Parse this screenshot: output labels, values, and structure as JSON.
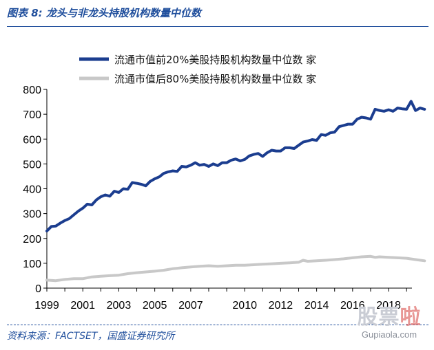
{
  "figure": {
    "title": "图表 8:  龙头与非龙头持股机构数量中位数",
    "source": "资料来源：FACTSET，国盛证券研究所",
    "watermark": {
      "text_a": "股票",
      "text_b": "啦",
      "url": "Gupiaola.com"
    }
  },
  "colors": {
    "series1": "#1b3d8f",
    "series2": "#c8c8c8",
    "brand": "#1f4e9c"
  },
  "chart_data": {
    "type": "line",
    "title": "",
    "xlabel": "",
    "ylabel": "",
    "ylim": [
      0,
      800
    ],
    "yticks": [
      0,
      100,
      200,
      300,
      400,
      500,
      600,
      700,
      800
    ],
    "xlim": [
      1999,
      2019.3
    ],
    "xticks": [
      1999,
      2001,
      2003,
      2005,
      2007,
      2010,
      2012,
      2014,
      2016,
      2018
    ],
    "grid": false,
    "legend_position": "top",
    "series": [
      {
        "name": "流通市值前20%美股持股机构数量中位数 家",
        "points": [
          [
            1999.0,
            230
          ],
          [
            1999.25,
            248
          ],
          [
            1999.5,
            250
          ],
          [
            1999.75,
            262
          ],
          [
            2000.0,
            272
          ],
          [
            2000.25,
            280
          ],
          [
            2000.5,
            295
          ],
          [
            2000.75,
            310
          ],
          [
            2001.0,
            322
          ],
          [
            2001.25,
            338
          ],
          [
            2001.5,
            335
          ],
          [
            2001.75,
            355
          ],
          [
            2002.0,
            368
          ],
          [
            2002.25,
            375
          ],
          [
            2002.5,
            370
          ],
          [
            2002.75,
            390
          ],
          [
            2003.0,
            385
          ],
          [
            2003.25,
            400
          ],
          [
            2003.5,
            398
          ],
          [
            2003.75,
            425
          ],
          [
            2004.0,
            422
          ],
          [
            2004.25,
            418
          ],
          [
            2004.5,
            412
          ],
          [
            2004.75,
            430
          ],
          [
            2005.0,
            440
          ],
          [
            2005.25,
            448
          ],
          [
            2005.5,
            462
          ],
          [
            2005.75,
            468
          ],
          [
            2006.0,
            472
          ],
          [
            2006.25,
            470
          ],
          [
            2006.5,
            490
          ],
          [
            2006.75,
            488
          ],
          [
            2007.0,
            495
          ],
          [
            2007.25,
            505
          ],
          [
            2007.5,
            495
          ],
          [
            2007.75,
            498
          ],
          [
            2008.0,
            490
          ],
          [
            2008.25,
            500
          ],
          [
            2008.5,
            493
          ],
          [
            2008.75,
            505
          ],
          [
            2009.0,
            505
          ],
          [
            2009.25,
            515
          ],
          [
            2009.5,
            520
          ],
          [
            2009.75,
            512
          ],
          [
            2010.0,
            518
          ],
          [
            2010.25,
            532
          ],
          [
            2010.5,
            538
          ],
          [
            2010.75,
            542
          ],
          [
            2011.0,
            530
          ],
          [
            2011.25,
            545
          ],
          [
            2011.5,
            555
          ],
          [
            2011.75,
            552
          ],
          [
            2012.0,
            552
          ],
          [
            2012.25,
            565
          ],
          [
            2012.5,
            565
          ],
          [
            2012.75,
            562
          ],
          [
            2013.0,
            575
          ],
          [
            2013.25,
            588
          ],
          [
            2013.5,
            592
          ],
          [
            2013.75,
            598
          ],
          [
            2014.0,
            595
          ],
          [
            2014.25,
            618
          ],
          [
            2014.5,
            615
          ],
          [
            2014.75,
            625
          ],
          [
            2015.0,
            628
          ],
          [
            2015.25,
            650
          ],
          [
            2015.5,
            655
          ],
          [
            2015.75,
            660
          ],
          [
            2016.0,
            660
          ],
          [
            2016.25,
            680
          ],
          [
            2016.5,
            688
          ],
          [
            2016.75,
            685
          ],
          [
            2017.0,
            680
          ],
          [
            2017.25,
            720
          ],
          [
            2017.5,
            715
          ],
          [
            2017.75,
            712
          ],
          [
            2018.0,
            718
          ],
          [
            2018.25,
            712
          ],
          [
            2018.5,
            725
          ],
          [
            2018.75,
            722
          ],
          [
            2019.0,
            720
          ],
          [
            2019.25,
            752
          ],
          [
            2019.5,
            715
          ],
          [
            2019.75,
            725
          ],
          [
            2020.0,
            720
          ]
        ]
      },
      {
        "name": "流通市值后80%美股持股机构数量中位数 家",
        "points": [
          [
            1999.0,
            32
          ],
          [
            1999.5,
            30
          ],
          [
            2000.0,
            35
          ],
          [
            2000.5,
            38
          ],
          [
            2001.0,
            38
          ],
          [
            2001.5,
            45
          ],
          [
            2002.0,
            48
          ],
          [
            2002.5,
            50
          ],
          [
            2003.0,
            52
          ],
          [
            2003.5,
            58
          ],
          [
            2004.0,
            62
          ],
          [
            2004.5,
            65
          ],
          [
            2005.0,
            68
          ],
          [
            2005.5,
            72
          ],
          [
            2006.0,
            78
          ],
          [
            2006.5,
            82
          ],
          [
            2007.0,
            85
          ],
          [
            2007.5,
            88
          ],
          [
            2008.0,
            90
          ],
          [
            2008.5,
            88
          ],
          [
            2009.0,
            90
          ],
          [
            2009.5,
            92
          ],
          [
            2010.0,
            92
          ],
          [
            2010.5,
            94
          ],
          [
            2011.0,
            96
          ],
          [
            2011.5,
            98
          ],
          [
            2012.0,
            100
          ],
          [
            2012.5,
            102
          ],
          [
            2013.0,
            104
          ],
          [
            2013.25,
            112
          ],
          [
            2013.5,
            108
          ],
          [
            2014.0,
            110
          ],
          [
            2014.5,
            112
          ],
          [
            2015.0,
            115
          ],
          [
            2015.5,
            118
          ],
          [
            2016.0,
            122
          ],
          [
            2016.5,
            126
          ],
          [
            2017.0,
            128
          ],
          [
            2017.25,
            124
          ],
          [
            2017.5,
            126
          ],
          [
            2018.0,
            124
          ],
          [
            2018.5,
            122
          ],
          [
            2019.0,
            120
          ],
          [
            2019.5,
            115
          ],
          [
            2020.0,
            110
          ]
        ]
      }
    ]
  }
}
